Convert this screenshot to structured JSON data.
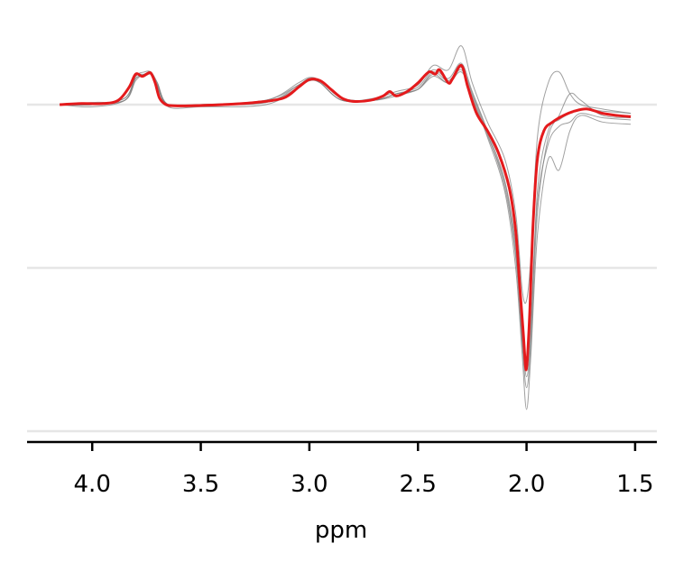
{
  "chart_data": {
    "type": "line",
    "title": "",
    "xlabel": "ppm",
    "ylabel": "",
    "x_reversed": true,
    "xlim": [
      4.3,
      1.4
    ],
    "ylim": [
      -1.5,
      0.35
    ],
    "xticks": [
      4.0,
      3.5,
      3.0,
      2.5,
      2.0,
      1.5
    ],
    "xtick_labels": [
      "4.0",
      "3.5",
      "3.0",
      "2.5",
      "2.0",
      "1.5"
    ],
    "y_gridlines": [
      0,
      -0.75,
      -1.5
    ],
    "grid_color": "#e6e6e6",
    "background_color": "#ffffff",
    "individual_color": "#808080",
    "mean_color": "#e41a1c",
    "mean_series": {
      "x": [
        4.15,
        4.05,
        3.95,
        3.88,
        3.83,
        3.8,
        3.77,
        3.75,
        3.73,
        3.71,
        3.69,
        3.66,
        3.62,
        3.55,
        3.4,
        3.25,
        3.12,
        3.05,
        3.0,
        2.95,
        2.9,
        2.85,
        2.8,
        2.72,
        2.66,
        2.63,
        2.6,
        2.55,
        2.5,
        2.45,
        2.42,
        2.4,
        2.36,
        2.34,
        2.3,
        2.27,
        2.23,
        2.18,
        2.13,
        2.08,
        2.05,
        2.03,
        2.015,
        2.005,
        2.0,
        1.995,
        1.985,
        1.97,
        1.95,
        1.92,
        1.88,
        1.83,
        1.78,
        1.72,
        1.65,
        1.58,
        1.52
      ],
      "y": [
        0.0,
        0.005,
        0.005,
        0.02,
        0.08,
        0.14,
        0.13,
        0.14,
        0.145,
        0.1,
        0.03,
        0.0,
        -0.005,
        -0.005,
        0.0,
        0.01,
        0.03,
        0.08,
        0.115,
        0.11,
        0.07,
        0.03,
        0.015,
        0.02,
        0.04,
        0.06,
        0.04,
        0.06,
        0.1,
        0.15,
        0.14,
        0.16,
        0.1,
        0.12,
        0.18,
        0.08,
        -0.04,
        -0.12,
        -0.22,
        -0.38,
        -0.58,
        -0.85,
        -1.05,
        -1.2,
        -1.21,
        -1.15,
        -0.95,
        -0.55,
        -0.25,
        -0.12,
        -0.08,
        -0.05,
        -0.03,
        -0.02,
        -0.04,
        -0.05,
        -0.055
      ]
    },
    "individual_series": [
      {
        "x": [
          4.15,
          4.0,
          3.85,
          3.8,
          3.76,
          3.73,
          3.7,
          3.65,
          3.5,
          3.2,
          3.05,
          3.0,
          2.95,
          2.85,
          2.7,
          2.6,
          2.5,
          2.43,
          2.36,
          2.3,
          2.25,
          2.18,
          2.1,
          2.05,
          2.02,
          2.0,
          1.98,
          1.95,
          1.9,
          1.85,
          1.8,
          1.75,
          1.65,
          1.52
        ],
        "y": [
          0.0,
          0.0,
          0.03,
          0.13,
          0.14,
          0.15,
          0.1,
          0.0,
          0.0,
          0.02,
          0.1,
          0.125,
          0.11,
          0.03,
          0.02,
          0.05,
          0.08,
          0.16,
          0.12,
          0.19,
          0.06,
          -0.12,
          -0.35,
          -0.65,
          -1.05,
          -1.25,
          -1.05,
          -0.4,
          -0.12,
          -0.07,
          -0.04,
          -0.02,
          -0.03,
          -0.04
        ]
      },
      {
        "x": [
          4.15,
          4.0,
          3.85,
          3.8,
          3.76,
          3.73,
          3.7,
          3.65,
          3.5,
          3.2,
          3.05,
          3.0,
          2.95,
          2.85,
          2.7,
          2.6,
          2.5,
          2.43,
          2.36,
          2.3,
          2.25,
          2.18,
          2.1,
          2.05,
          2.02,
          2.0,
          1.98,
          1.95,
          1.9,
          1.85,
          1.8,
          1.75,
          1.65,
          1.52
        ],
        "y": [
          0.0,
          -0.01,
          0.02,
          0.12,
          0.13,
          0.14,
          0.09,
          -0.01,
          -0.01,
          0.0,
          0.08,
          0.11,
          0.1,
          0.02,
          0.03,
          0.06,
          0.09,
          0.18,
          0.16,
          0.27,
          0.1,
          -0.08,
          -0.25,
          -0.5,
          -0.85,
          -0.9,
          -0.7,
          -0.15,
          0.1,
          0.15,
          0.05,
          0.0,
          -0.02,
          -0.04
        ]
      },
      {
        "x": [
          4.15,
          4.0,
          3.85,
          3.8,
          3.76,
          3.73,
          3.7,
          3.65,
          3.5,
          3.2,
          3.05,
          3.0,
          2.95,
          2.85,
          2.7,
          2.6,
          2.5,
          2.43,
          2.36,
          2.3,
          2.25,
          2.18,
          2.1,
          2.05,
          2.02,
          2.0,
          1.98,
          1.95,
          1.9,
          1.85,
          1.8,
          1.75,
          1.65,
          1.52
        ],
        "y": [
          0.0,
          0.01,
          0.02,
          0.11,
          0.14,
          0.14,
          0.08,
          0.0,
          0.0,
          0.01,
          0.09,
          0.12,
          0.1,
          0.02,
          0.02,
          0.05,
          0.07,
          0.14,
          0.1,
          0.16,
          0.03,
          -0.15,
          -0.4,
          -0.75,
          -1.15,
          -1.4,
          -1.15,
          -0.6,
          -0.25,
          -0.3,
          -0.12,
          -0.05,
          -0.08,
          -0.09
        ]
      },
      {
        "x": [
          4.15,
          4.0,
          3.85,
          3.8,
          3.76,
          3.73,
          3.7,
          3.65,
          3.5,
          3.2,
          3.05,
          3.0,
          2.95,
          2.85,
          2.7,
          2.6,
          2.5,
          2.43,
          2.36,
          2.3,
          2.25,
          2.18,
          2.1,
          2.05,
          2.02,
          2.0,
          1.98,
          1.95,
          1.9,
          1.85,
          1.8,
          1.75,
          1.65,
          1.52
        ],
        "y": [
          0.0,
          0.0,
          0.03,
          0.13,
          0.15,
          0.15,
          0.1,
          0.0,
          0.0,
          0.02,
          0.09,
          0.12,
          0.11,
          0.03,
          0.02,
          0.05,
          0.07,
          0.15,
          0.11,
          0.17,
          0.05,
          -0.13,
          -0.38,
          -0.7,
          -1.1,
          -1.3,
          -1.1,
          -0.5,
          -0.15,
          -0.05,
          0.05,
          0.02,
          -0.05,
          -0.06
        ]
      },
      {
        "x": [
          4.15,
          4.0,
          3.85,
          3.8,
          3.76,
          3.73,
          3.7,
          3.65,
          3.5,
          3.2,
          3.05,
          3.0,
          2.95,
          2.85,
          2.7,
          2.6,
          2.5,
          2.43,
          2.36,
          2.3,
          2.25,
          2.18,
          2.1,
          2.05,
          2.02,
          2.0,
          1.98,
          1.95,
          1.9,
          1.85,
          1.8,
          1.75,
          1.65,
          1.52
        ],
        "y": [
          0.0,
          0.0,
          0.02,
          0.12,
          0.13,
          0.14,
          0.09,
          0.0,
          0.0,
          0.01,
          0.08,
          0.11,
          0.1,
          0.02,
          0.02,
          0.04,
          0.07,
          0.13,
          0.1,
          0.15,
          0.04,
          -0.14,
          -0.36,
          -0.68,
          -1.08,
          -1.22,
          -1.0,
          -0.45,
          -0.18,
          -0.1,
          -0.08,
          -0.04,
          -0.06,
          -0.07
        ]
      }
    ]
  }
}
